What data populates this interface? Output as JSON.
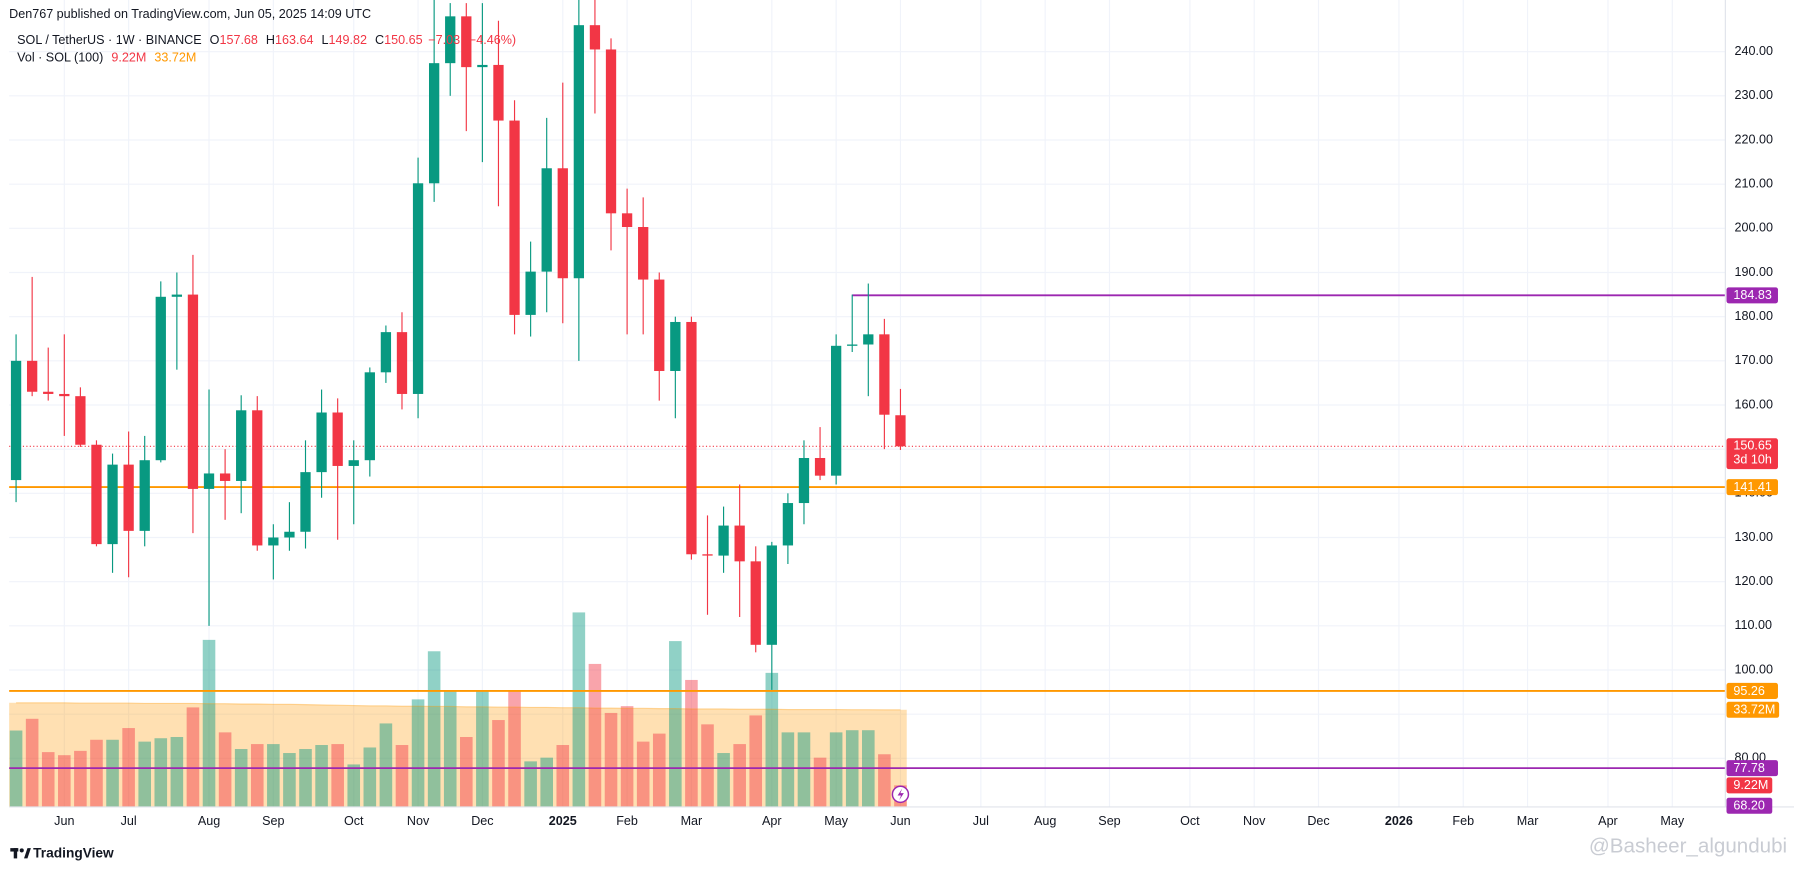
{
  "chart_data": {
    "type": "candlestick",
    "header": "Den767 published on TradingView.com, Jun 05, 2025 14:09 UTC",
    "symbol": "SOL / TetherUS · 1W · BINANCE",
    "ohlc_prefixes": [
      "O",
      "H",
      "L",
      "C"
    ],
    "change": {
      "value": -7.03,
      "label": "−7.03"
    },
    "change_pct": {
      "value": -4.46,
      "label": "(−4.46%)"
    },
    "volume_title": "Vol · SOL (100)",
    "up_color": "#089981",
    "down_color": "#f23645",
    "open": [
      143,
      170,
      163,
      162.5,
      162,
      151,
      128.5,
      146.5,
      131.5,
      147.5,
      184.5,
      185,
      141,
      144.5,
      142.8,
      158.8,
      128.2,
      130,
      131.3,
      144.8,
      158.3,
      146.2,
      147.5,
      167.4,
      176.5,
      162.5,
      210.2,
      237.4,
      248,
      236.5,
      237,
      224.4,
      180.4,
      190.2,
      213.6,
      188.7,
      246,
      240.5,
      203.4,
      200.3,
      188.4,
      167.7,
      178.8,
      126.2,
      125.9,
      132.7,
      124.6,
      105.7,
      128.2,
      137.8,
      148,
      144,
      173.4,
      173.7,
      176,
      157.68
    ],
    "high": [
      176,
      189,
      173,
      176,
      164,
      152,
      149,
      154,
      153,
      188,
      190,
      194,
      163.5,
      150,
      162.2,
      162,
      133,
      138,
      152,
      163.5,
      161.5,
      152,
      168.5,
      178,
      181,
      216,
      254,
      251,
      251,
      251,
      247,
      229,
      197,
      225,
      233,
      252,
      252,
      243,
      209,
      207,
      190,
      180,
      180,
      135,
      137,
      142,
      128,
      129,
      140,
      152,
      155,
      176,
      185,
      187.5,
      179.5,
      163.64
    ],
    "low": [
      138,
      162,
      161,
      153,
      150.5,
      128,
      122,
      121,
      128,
      147,
      168,
      131,
      110,
      134,
      135.5,
      127,
      120.5,
      127,
      127.5,
      139,
      129.5,
      133,
      143.8,
      165,
      159,
      157,
      206,
      230,
      222,
      215,
      205,
      176,
      175.5,
      181,
      178.5,
      170,
      226,
      195,
      176,
      176,
      161,
      157,
      125,
      112.5,
      122,
      112,
      104,
      95.5,
      124,
      133,
      143,
      142,
      172,
      162,
      150,
      149.82
    ],
    "close": [
      170,
      163,
      162.5,
      162,
      151,
      128.5,
      146.5,
      131.5,
      147.5,
      184.5,
      185,
      141,
      144.5,
      142.8,
      158.8,
      128.2,
      130,
      131.3,
      144.8,
      158.3,
      146.2,
      147.5,
      167.4,
      176.5,
      162.5,
      210.2,
      237.4,
      248,
      236.5,
      237,
      224.4,
      180.4,
      190.2,
      213.6,
      188.7,
      246,
      240.5,
      203.4,
      200.3,
      188.4,
      167.7,
      178.8,
      126.2,
      125.9,
      132.7,
      124.6,
      105.7,
      128.2,
      137.8,
      148,
      144,
      173.4,
      173.7,
      176,
      157.8,
      150.65
    ],
    "volume": {
      "values": [
        27,
        30.8,
        20,
        19,
        20.4,
        24,
        24,
        27.8,
        23.4,
        24.5,
        24.9,
        34.5,
        56.4,
        26.4,
        21,
        22.6,
        22.6,
        19.7,
        21,
        22.3,
        22.6,
        16,
        21.5,
        29.3,
        22.3,
        37.1,
        52.7,
        40,
        24.9,
        39.7,
        30.4,
        40,
        17,
        18.2,
        22.3,
        65.3,
        48.6,
        32.7,
        34.9,
        23.4,
        26,
        56,
        43.4,
        29,
        19.7,
        22.6,
        31.9,
        45.7,
        26.4,
        26.4,
        18.2,
        26.4,
        27.1,
        27.1,
        19.3,
        9.22
      ],
      "ma": [
        36,
        36,
        36,
        36,
        35.9,
        35.9,
        35.9,
        35.9,
        35.8,
        35.8,
        35.8,
        35.8,
        35.7,
        35.7,
        35.6,
        35.6,
        35.5,
        35.5,
        35.4,
        35.3,
        35.2,
        35.1,
        35,
        35,
        34.9,
        34.9,
        34.8,
        34.8,
        34.7,
        34.7,
        34.6,
        34.6,
        34.5,
        34.5,
        34.4,
        34.4,
        34.3,
        34.3,
        34.2,
        34.2,
        34.1,
        34.1,
        34,
        34,
        34,
        33.9,
        33.9,
        33.9,
        33.8,
        33.8,
        33.8,
        33.8,
        33.75,
        33.75,
        33.72,
        33.72
      ],
      "ma_color": "#ff9800",
      "last": {
        "value": 9.22,
        "label": "9.22M",
        "color": "#f23645"
      },
      "ma_last": {
        "value": 33.72,
        "label": "33.72M",
        "color": "#ff9800"
      }
    },
    "ylim": [
      69,
      251.7
    ],
    "yticks": [
      {
        "value": 80,
        "label": "80.00"
      },
      {
        "value": 90,
        "label": "90.00"
      },
      {
        "value": 100,
        "label": "100.00"
      },
      {
        "value": 110,
        "label": "110.00"
      },
      {
        "value": 120,
        "label": "120.00"
      },
      {
        "value": 130,
        "label": "130.00"
      },
      {
        "value": 140,
        "label": "140.00"
      },
      {
        "value": 150,
        "label": "150.00"
      },
      {
        "value": 160,
        "label": "160.00"
      },
      {
        "value": 170,
        "label": "170.00"
      },
      {
        "value": 180,
        "label": "180.00"
      },
      {
        "value": 190,
        "label": "190.00"
      },
      {
        "value": 200,
        "label": "200.00"
      },
      {
        "value": 210,
        "label": "210.00"
      },
      {
        "value": 220,
        "label": "220.00"
      },
      {
        "value": 230,
        "label": "230.00"
      },
      {
        "value": 240,
        "label": "240.00"
      }
    ],
    "xlim": [
      -0.43,
      106.3
    ],
    "xticks": [
      {
        "value": 3,
        "label": "Jun"
      },
      {
        "value": 7,
        "label": "Jul"
      },
      {
        "value": 12,
        "label": "Aug"
      },
      {
        "value": 16,
        "label": "Sep"
      },
      {
        "value": 21,
        "label": "Oct"
      },
      {
        "value": 25,
        "label": "Nov"
      },
      {
        "value": 29,
        "label": "Dec"
      },
      {
        "value": 34,
        "label": "2025"
      },
      {
        "value": 38,
        "label": "Feb"
      },
      {
        "value": 42,
        "label": "Mar"
      },
      {
        "value": 47,
        "label": "Apr"
      },
      {
        "value": 51,
        "label": "May"
      },
      {
        "value": 55,
        "label": "Jun"
      },
      {
        "value": 60,
        "label": "Jul"
      },
      {
        "value": 64,
        "label": "Aug"
      },
      {
        "value": 68,
        "label": "Sep"
      },
      {
        "value": 73,
        "label": "Oct"
      },
      {
        "value": 77,
        "label": "Nov"
      },
      {
        "value": 81,
        "label": "Dec"
      },
      {
        "value": 86,
        "label": "2026"
      },
      {
        "value": 90,
        "label": "Feb"
      },
      {
        "value": 94,
        "label": "Mar"
      },
      {
        "value": 99,
        "label": "Apr"
      },
      {
        "value": 103,
        "label": "May"
      }
    ],
    "levels": [
      {
        "value": 184.83,
        "color": "#9c27b0",
        "start": 52
      },
      {
        "value": 141.41,
        "color": "#ff9800"
      },
      {
        "value": 95.26,
        "color": "#ff9800"
      },
      {
        "value": 77.78,
        "color": "#9c27b0"
      }
    ],
    "current": {
      "value": 150.65,
      "countdown": "3d 10h",
      "color": "#f23645"
    },
    "extra_label": {
      "value": 68.2,
      "label": "68.20",
      "color": "#9c27b0"
    },
    "grid": true,
    "brand": "TradingView",
    "watermark": "@Basheer_algundubi"
  }
}
